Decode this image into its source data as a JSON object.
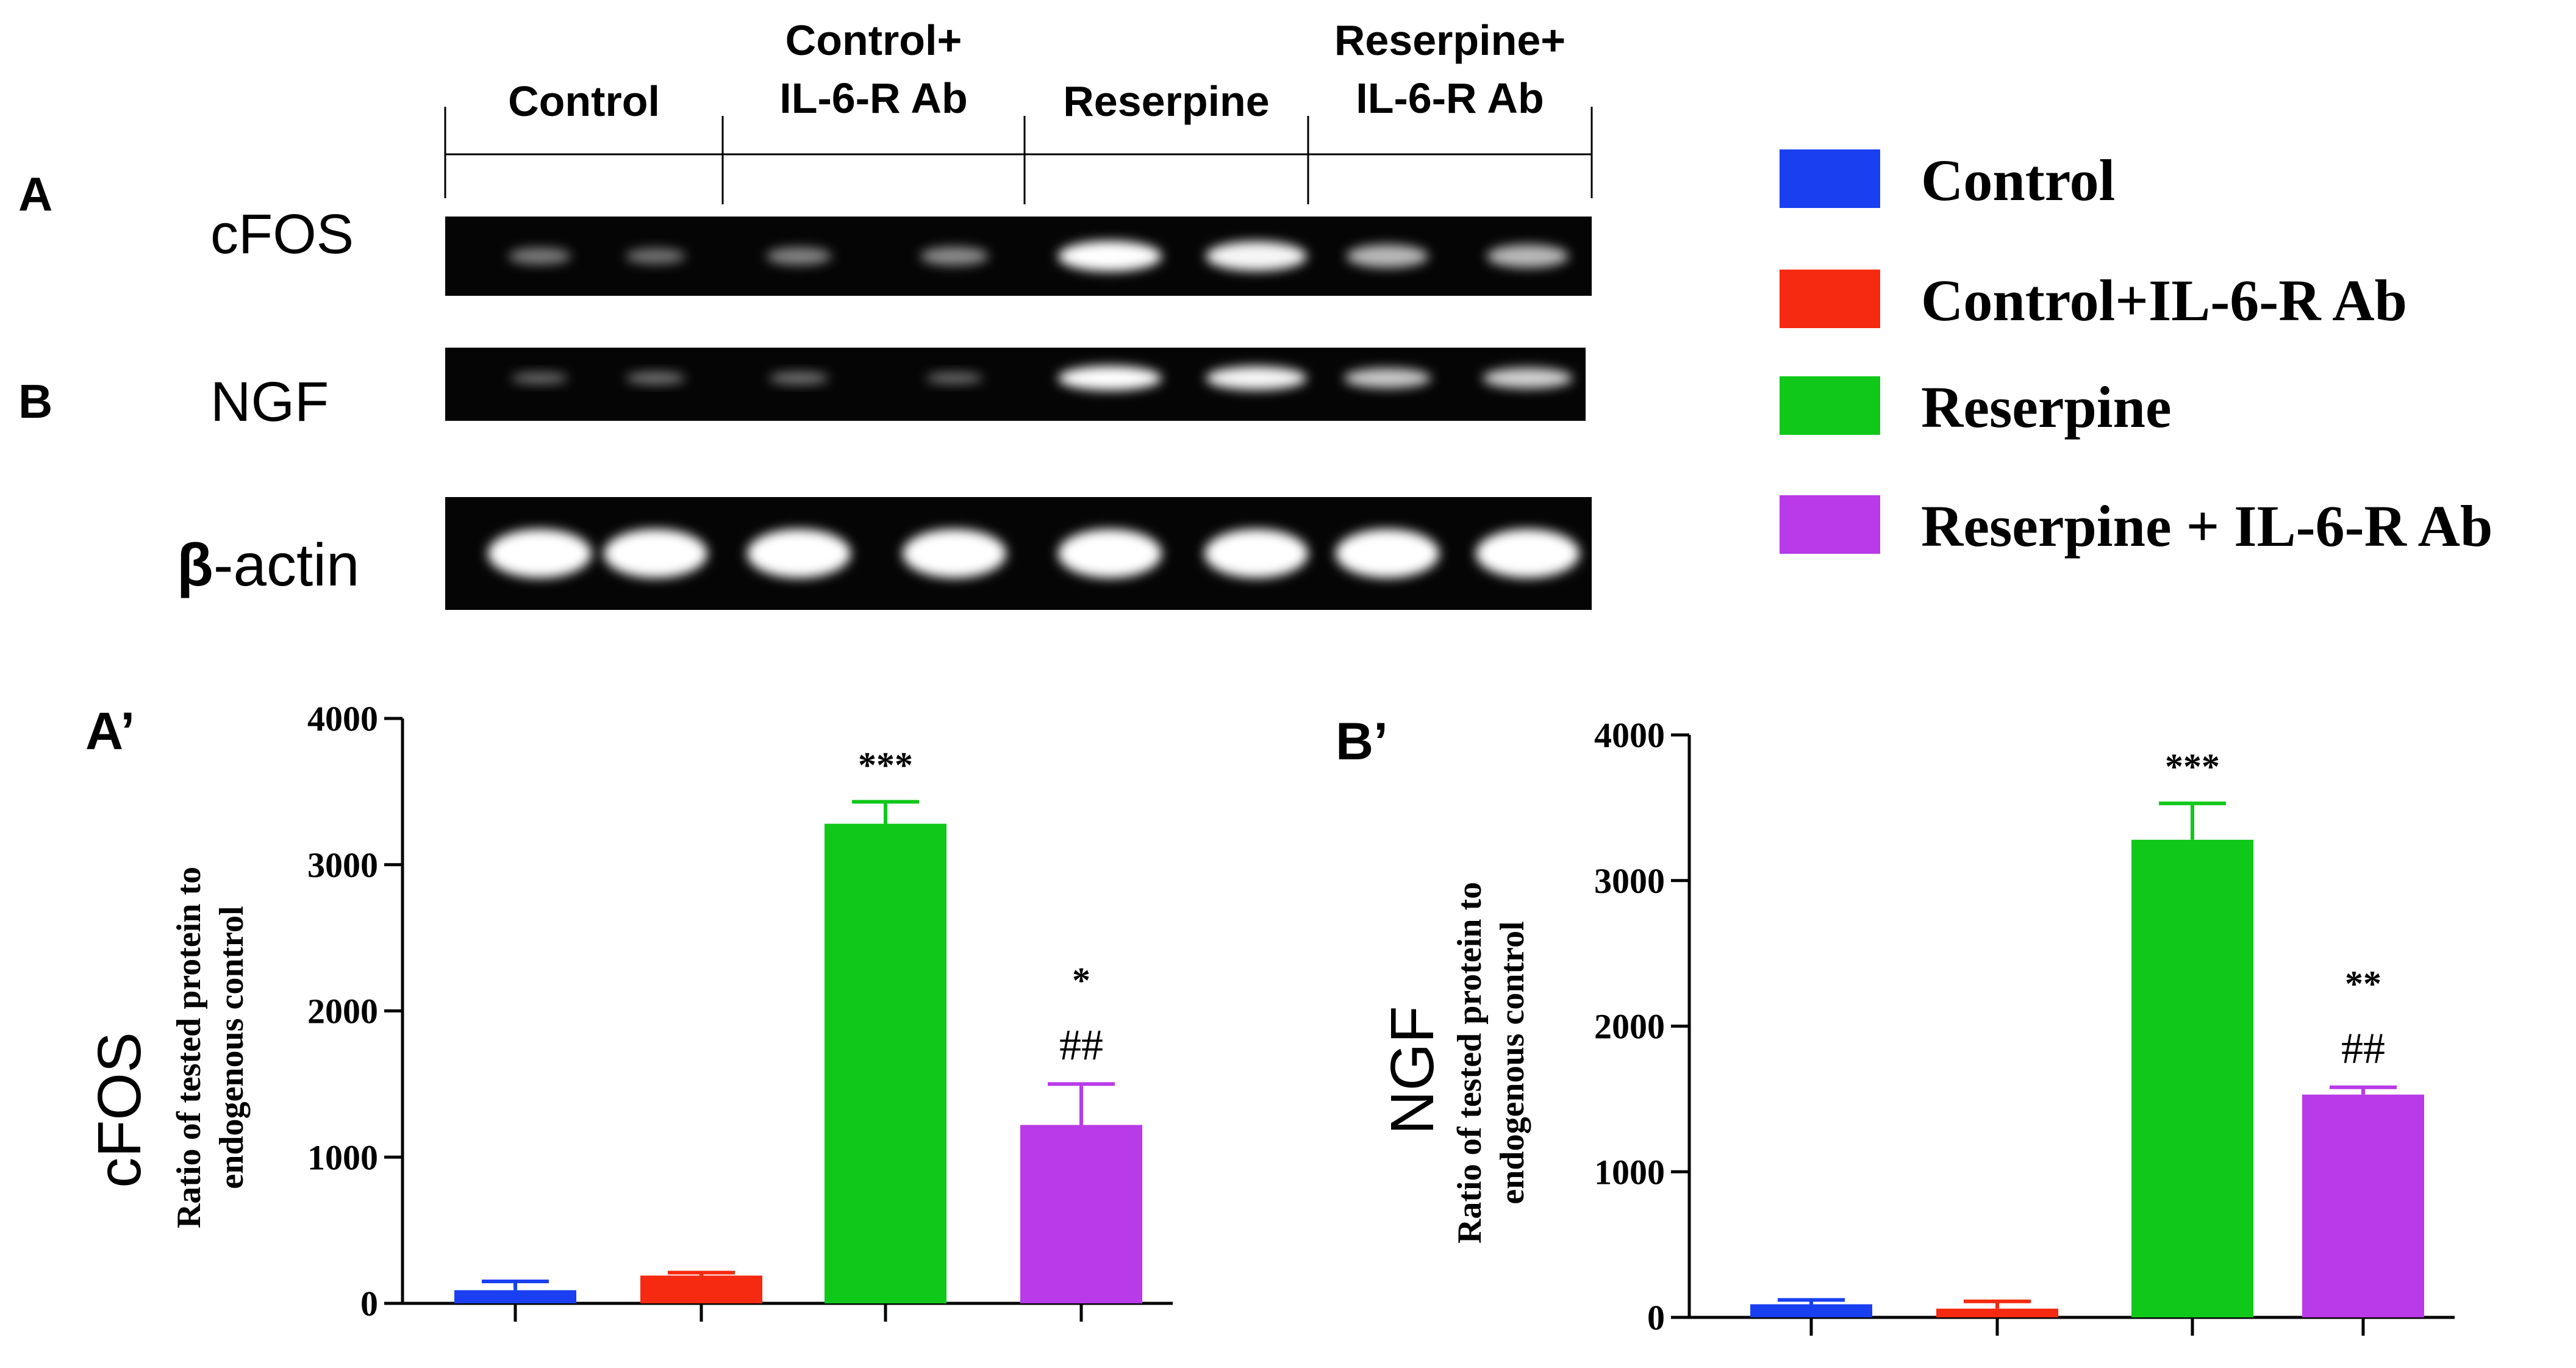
{
  "panel_labels": {
    "a": "A",
    "b": "B",
    "a_prime": "A’",
    "b_prime": "B’"
  },
  "blot": {
    "group_headers": [
      {
        "lines": [
          "Control"
        ]
      },
      {
        "lines": [
          "Control+",
          "IL-6-R Ab"
        ]
      },
      {
        "lines": [
          "Reserpine"
        ]
      },
      {
        "lines": [
          "Reserpine+",
          "IL-6-R Ab"
        ]
      }
    ],
    "rows": [
      {
        "label": "cFOS",
        "band_intensity": [
          0.25,
          0.2,
          0.3,
          0.35,
          1.0,
          0.95,
          0.6,
          0.6
        ]
      },
      {
        "label": "NGF",
        "band_intensity": [
          0.15,
          0.2,
          0.2,
          0.15,
          1.0,
          0.95,
          0.7,
          0.75
        ]
      },
      {
        "label_bold": "β",
        "label_rest": "-actin",
        "band_intensity": [
          1,
          1,
          1,
          1,
          1,
          1,
          1,
          1
        ]
      }
    ]
  },
  "legend": [
    {
      "label": "Control",
      "color": "#1a3ff0"
    },
    {
      "label": "Control+IL-6-R Ab",
      "color": "#f52a10"
    },
    {
      "label": "Reserpine",
      "color": "#10c81a"
    },
    {
      "label": "Reserpine + IL-6-R Ab",
      "color": "#b83ae8"
    }
  ],
  "chart_data": [
    {
      "type": "bar",
      "title": "",
      "ylabel": "Ratio of tested protein to endogenous control",
      "ylabel_lines": [
        "Ratio of tested protein to",
        "endogenous control"
      ],
      "side_label": "cFOS",
      "ylim": [
        0,
        4000
      ],
      "yticks": [
        "0",
        "1000",
        "2000",
        "3000",
        "4000"
      ],
      "series": [
        {
          "name": "Control",
          "color": "#1a3ff0",
          "value": 90,
          "error": 60,
          "annotations": []
        },
        {
          "name": "Control+IL-6-R Ab",
          "color": "#f52a10",
          "value": 190,
          "error": 20,
          "annotations": []
        },
        {
          "name": "Reserpine",
          "color": "#10c81a",
          "value": 3280,
          "error": 150,
          "annotations": [
            "***"
          ]
        },
        {
          "name": "Reserpine + IL-6-R Ab",
          "color": "#b83ae8",
          "value": 1220,
          "error": 280,
          "annotations": [
            "*",
            "##"
          ]
        }
      ]
    },
    {
      "type": "bar",
      "title": "",
      "ylabel": "Ratio of tested protein to endogenous control",
      "ylabel_lines": [
        "Ratio of tested protein to",
        "endogenous control"
      ],
      "side_label": "NGF",
      "ylim": [
        0,
        4000
      ],
      "yticks": [
        "0",
        "1000",
        "2000",
        "3000",
        "4000"
      ],
      "series": [
        {
          "name": "Control",
          "color": "#1a3ff0",
          "value": 90,
          "error": 30,
          "annotations": []
        },
        {
          "name": "Control+IL-6-R Ab",
          "color": "#f52a10",
          "value": 60,
          "error": 50,
          "annotations": []
        },
        {
          "name": "Reserpine",
          "color": "#10c81a",
          "value": 3280,
          "error": 250,
          "annotations": [
            "***"
          ]
        },
        {
          "name": "Reserpine + IL-6-R Ab",
          "color": "#b83ae8",
          "value": 1530,
          "error": 50,
          "annotations": [
            "**",
            "##"
          ]
        }
      ]
    }
  ]
}
